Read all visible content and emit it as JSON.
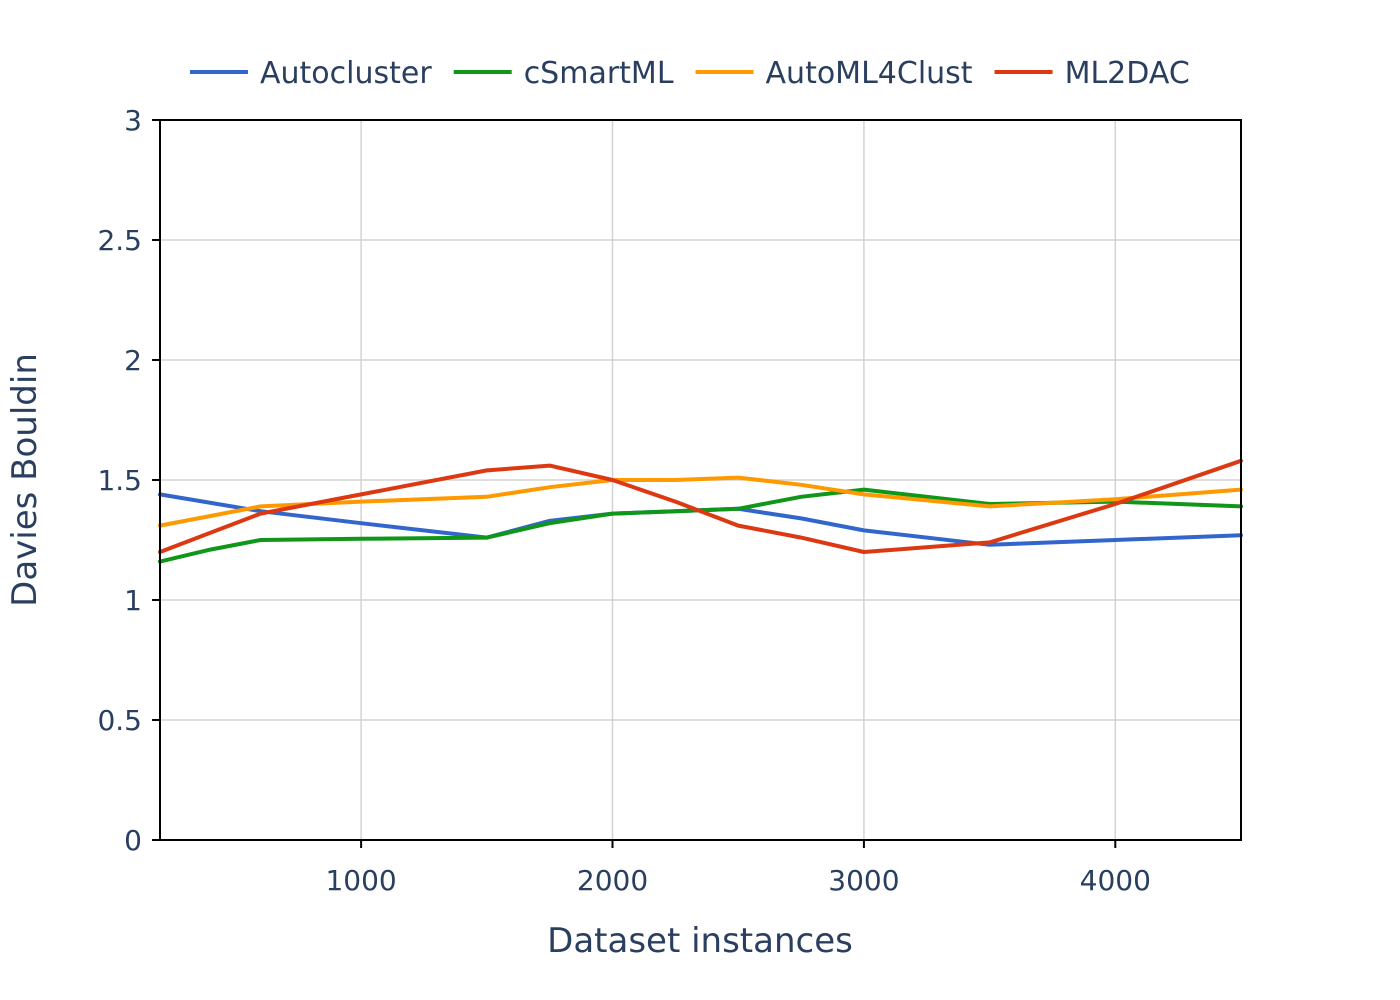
{
  "chart_data": {
    "type": "line",
    "xlabel": "Dataset instances",
    "ylabel": "Davies Bouldin",
    "xlim": [
      200,
      4500
    ],
    "ylim": [
      0,
      3
    ],
    "xticks": [
      1000,
      2000,
      3000,
      4000
    ],
    "yticks": [
      0,
      0.5,
      1,
      1.5,
      2,
      2.5,
      3
    ],
    "ytick_labels": [
      "0",
      "0.5",
      "1",
      "1.5",
      "2",
      "2.5",
      "3"
    ],
    "xtick_labels": [
      "1000",
      "2000",
      "3000",
      "4000"
    ],
    "grid": true,
    "legend_position": "top",
    "series": [
      {
        "name": "Autocluster",
        "color": "#3366cc",
        "x": [
          200,
          600,
          1000,
          1500,
          1750,
          2000,
          2250,
          2500,
          2750,
          3000,
          3500,
          4000,
          4500
        ],
        "y": [
          1.44,
          1.37,
          1.32,
          1.26,
          1.33,
          1.36,
          1.37,
          1.38,
          1.34,
          1.29,
          1.23,
          1.25,
          1.27
        ]
      },
      {
        "name": "cSmartML",
        "color": "#109618",
        "x": [
          200,
          400,
          600,
          1000,
          1500,
          1750,
          2000,
          2250,
          2500,
          2750,
          3000,
          3500,
          4000,
          4500
        ],
        "y": [
          1.16,
          1.21,
          1.25,
          1.255,
          1.26,
          1.32,
          1.36,
          1.37,
          1.38,
          1.43,
          1.46,
          1.4,
          1.41,
          1.39
        ]
      },
      {
        "name": "AutoML4Clust",
        "color": "#ff9900",
        "x": [
          200,
          600,
          1000,
          1500,
          1750,
          2000,
          2250,
          2500,
          2750,
          3000,
          3500,
          4000,
          4500
        ],
        "y": [
          1.31,
          1.39,
          1.41,
          1.43,
          1.47,
          1.5,
          1.5,
          1.51,
          1.48,
          1.44,
          1.39,
          1.42,
          1.46
        ]
      },
      {
        "name": "ML2DAC",
        "color": "#dc3912",
        "x": [
          200,
          600,
          1000,
          1500,
          1750,
          2000,
          2250,
          2500,
          2750,
          3000,
          3500,
          4000,
          4500
        ],
        "y": [
          1.2,
          1.36,
          1.44,
          1.54,
          1.56,
          1.5,
          1.41,
          1.31,
          1.26,
          1.2,
          1.24,
          1.4,
          1.58
        ]
      }
    ]
  }
}
